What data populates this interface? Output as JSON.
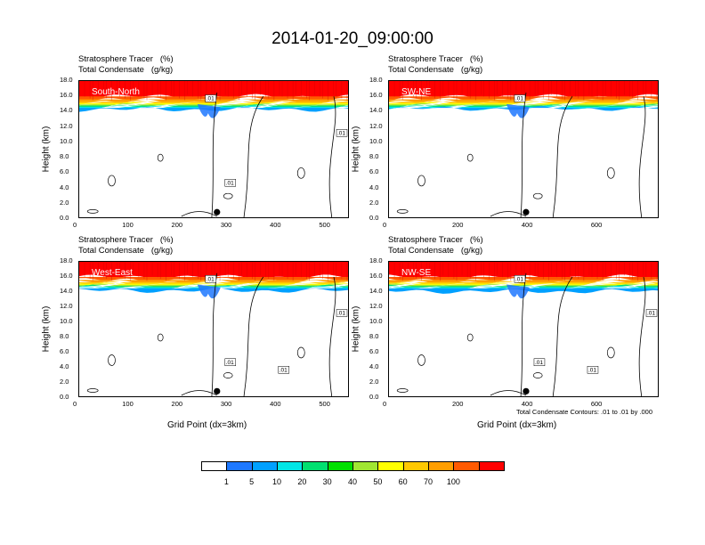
{
  "figure": {
    "title": "2014-01-20_09:00:00",
    "note": "Total Condensate Contours: .01 to .01 by .000",
    "xlabel": "Grid Point (dx=3km)",
    "ylabel": "Height (km)"
  },
  "colors": {
    "levels": [
      "#ffffff",
      "#1e78ff",
      "#00a0ff",
      "#00e6e6",
      "#00e070",
      "#00e000",
      "#a0e632",
      "#ffff00",
      "#ffc800",
      "#ff9e00",
      "#ff5a00",
      "#ff0000"
    ]
  },
  "chart_data": [
    {
      "type": "heatmap",
      "subtitle_line1": "Stratosphere Tracer   (%)",
      "subtitle_line2": "Total Condensate   (g/kg)",
      "region": "South-North",
      "xlim": [
        0,
        550
      ],
      "ylim": [
        0,
        18
      ],
      "xticks": [
        "0",
        "100",
        "200",
        "300",
        "400",
        "500"
      ],
      "xtick_values": [
        0,
        100,
        200,
        300,
        400,
        500
      ],
      "yticks": [
        "0.0",
        "2.0",
        "4.0",
        "6.0",
        "8.0",
        "10.0",
        "12.0",
        "14.0",
        "16.0",
        "18.0"
      ],
      "contour_labels": [
        ".01",
        ".01",
        ".01"
      ],
      "tropopause_km": 14.6,
      "marker_x": 280
    },
    {
      "type": "heatmap",
      "subtitle_line1": "Stratosphere Tracer   (%)",
      "subtitle_line2": "Total Condensate   (g/kg)",
      "region": "SW-NE",
      "xlim": [
        0,
        780
      ],
      "ylim": [
        0,
        18
      ],
      "xticks": [
        "0",
        "200",
        "400",
        "600"
      ],
      "xtick_values": [
        0,
        200,
        400,
        600
      ],
      "yticks": [
        "0.0",
        "2.0",
        "4.0",
        "6.0",
        "8.0",
        "10.0",
        "12.0",
        "14.0",
        "16.0",
        "18.0"
      ],
      "contour_labels": [
        ".01"
      ],
      "tropopause_km": 14.7,
      "marker_x": 395
    },
    {
      "type": "heatmap",
      "subtitle_line1": "Stratosphere Tracer   (%)",
      "subtitle_line2": "Total Condensate   (g/kg)",
      "region": "West-East",
      "xlim": [
        0,
        550
      ],
      "ylim": [
        0,
        18
      ],
      "xticks": [
        "0",
        "100",
        "200",
        "300",
        "400",
        "500"
      ],
      "xtick_values": [
        0,
        100,
        200,
        300,
        400,
        500
      ],
      "yticks": [
        "0.0",
        "2.0",
        "4.0",
        "6.0",
        "8.0",
        "10.0",
        "12.0",
        "14.0",
        "16.0",
        "18.0"
      ],
      "contour_labels": [
        ".01",
        ".01",
        ".01",
        ".01"
      ],
      "tropopause_km": 14.5,
      "marker_x": 280
    },
    {
      "type": "heatmap",
      "subtitle_line1": "Stratosphere Tracer   (%)",
      "subtitle_line2": "Total Condensate   (g/kg)",
      "region": "NW-SE",
      "xlim": [
        0,
        780
      ],
      "ylim": [
        0,
        18
      ],
      "xticks": [
        "0",
        "200",
        "400",
        "600"
      ],
      "xtick_values": [
        0,
        200,
        400,
        600
      ],
      "yticks": [
        "0.0",
        "2.0",
        "4.0",
        "6.0",
        "8.0",
        "10.0",
        "12.0",
        "14.0",
        "16.0",
        "18.0"
      ],
      "contour_labels": [
        ".01",
        ".01",
        ".01",
        ".01"
      ],
      "tropopause_km": 14.4,
      "marker_x": 395
    }
  ],
  "colorbar": {
    "labels": [
      "1",
      "5",
      "10",
      "20",
      "30",
      "40",
      "50",
      "60",
      "70",
      "100"
    ]
  }
}
